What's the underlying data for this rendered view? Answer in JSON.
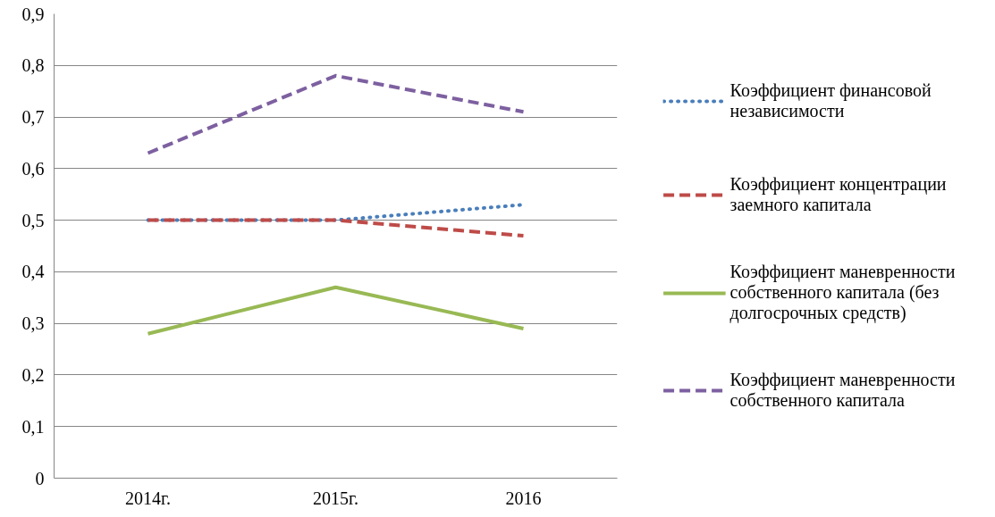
{
  "chart_data": {
    "type": "line",
    "categories": [
      "2014г.",
      "2015г.",
      "2016"
    ],
    "series": [
      {
        "name": "Коэффициент финансовой независимости",
        "color": "#4a7ebb",
        "line_style": "dotted",
        "values": [
          0.5,
          0.5,
          0.53
        ]
      },
      {
        "name": "Коэффициент концентрации заемного капитала",
        "color": "#be4b48",
        "line_style": "dashed",
        "values": [
          0.5,
          0.5,
          0.47
        ]
      },
      {
        "name": "Коэффициент маневренности собственного капитала (без долгосрочных средств)",
        "color": "#98b954",
        "line_style": "solid",
        "values": [
          0.28,
          0.37,
          0.29
        ]
      },
      {
        "name": "Коэффициент маневренности собственного капитала",
        "color": "#7d60a0",
        "line_style": "dashed",
        "values": [
          0.63,
          0.78,
          0.71
        ]
      }
    ],
    "ylim": [
      0,
      0.9
    ],
    "yticks": [
      {
        "value": 0,
        "label": "0"
      },
      {
        "value": 0.1,
        "label": "0,1"
      },
      {
        "value": 0.2,
        "label": "0,2"
      },
      {
        "value": 0.3,
        "label": "0,3"
      },
      {
        "value": 0.4,
        "label": "0,4"
      },
      {
        "value": 0.5,
        "label": "0,5"
      },
      {
        "value": 0.6,
        "label": "0,6"
      },
      {
        "value": 0.7,
        "label": "0,7"
      },
      {
        "value": 0.8,
        "label": "0,8"
      },
      {
        "value": 0.9,
        "label": "0,9"
      }
    ],
    "grid": "y",
    "legend": "right",
    "marker": "none"
  }
}
